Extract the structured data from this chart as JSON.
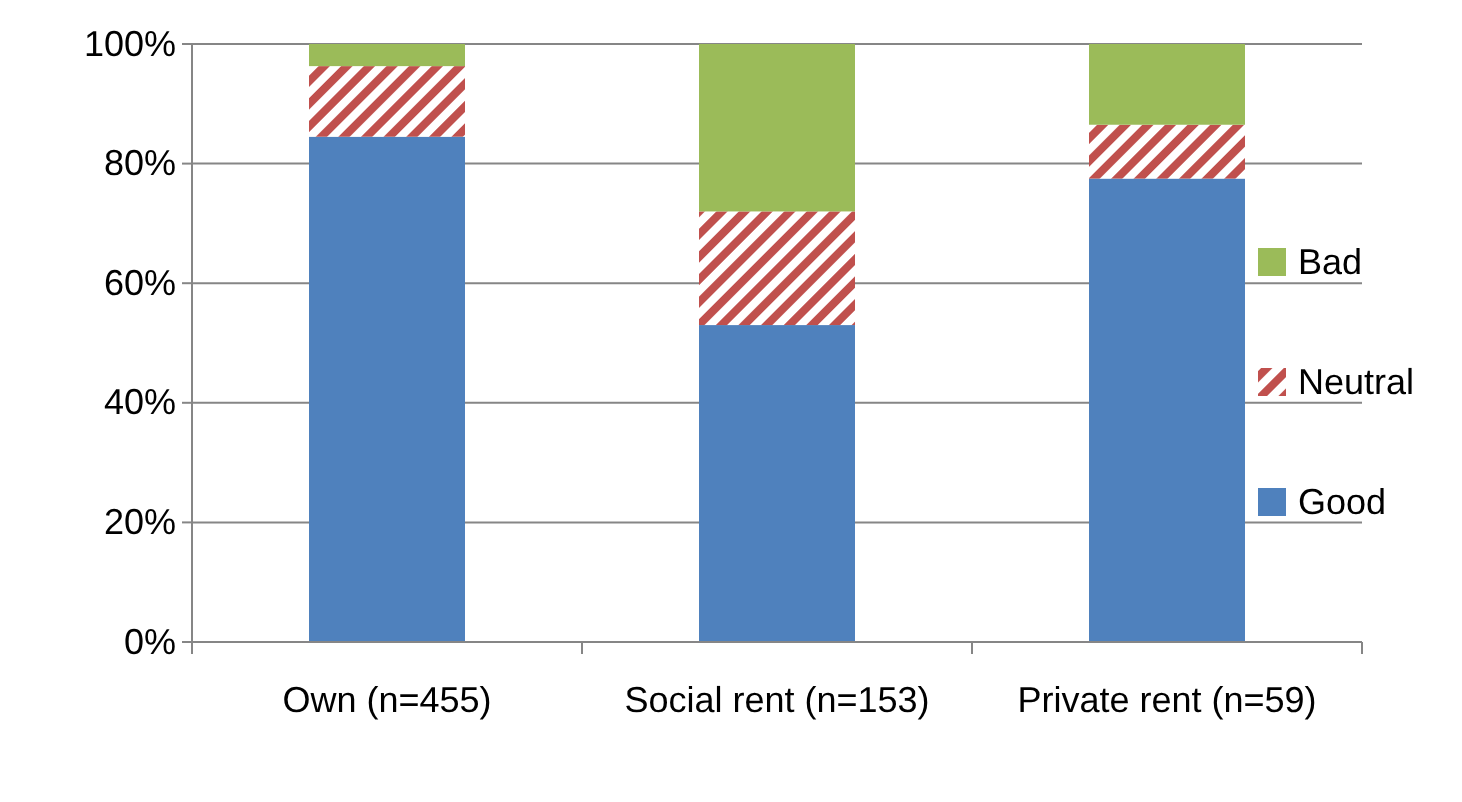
{
  "chart_data": {
    "type": "bar",
    "stacked": true,
    "categories": [
      "Own (n=455)",
      "Social rent (n=153)",
      "Private rent (n=59)"
    ],
    "series": [
      {
        "name": "Good",
        "color": "#4f81bd",
        "values": [
          84.5,
          53,
          77.5
        ]
      },
      {
        "name": "Neutral",
        "color": "#c0504d",
        "values": [
          11.8,
          19,
          9
        ]
      },
      {
        "name": "Bad",
        "color": "#9bbb59",
        "values": [
          3.7,
          28,
          13.5
        ]
      }
    ],
    "ylim": [
      0,
      100
    ],
    "yticks": [
      {
        "value": 0,
        "label": "0%"
      },
      {
        "value": 20,
        "label": "20%"
      },
      {
        "value": 40,
        "label": "40%"
      },
      {
        "value": 60,
        "label": "60%"
      },
      {
        "value": 80,
        "label": "80%"
      },
      {
        "value": 100,
        "label": "100%"
      }
    ],
    "grid": "y",
    "legend": "right"
  }
}
